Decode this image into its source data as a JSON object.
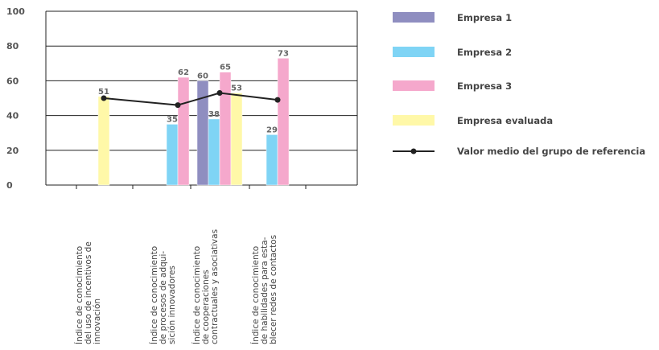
{
  "chart_data": {
    "type": "bar",
    "ylim": [
      0,
      100
    ],
    "y_ticks": [
      "0",
      "20",
      "40",
      "60",
      "80",
      "100"
    ],
    "grid": true,
    "legend_position": "right",
    "categories": [
      "Índice de conocimiento del uso de incentivos de innovación",
      "Índice de conocimiento de procesos de adquisición innovadores",
      "Índice de conocimiento de cooperaciones contractuales y asociativas",
      "Índice de conocimiento de habilidades para establecer redes de contactos"
    ],
    "category_label_lines": [
      [
        "Índice de conocimiento",
        "del uso de incentivos de",
        "innovación"
      ],
      [
        "Índice de conocimiento",
        "de procesos de adqui-",
        "sición innovadores"
      ],
      [
        "Índice de conocimiento",
        "de cooperaciones",
        "contractuales y asociativas"
      ],
      [
        "Índice de conocimiento",
        "de habilidades para esta-",
        "blecer redes de contactos"
      ]
    ],
    "series": [
      {
        "name": "Empresa 1",
        "color": "#8f8ec0",
        "values": [
          null,
          null,
          60,
          null
        ]
      },
      {
        "name": "Empresa 2",
        "color": "#7fd4f5",
        "values": [
          null,
          35,
          38,
          29
        ]
      },
      {
        "name": "Empresa 3",
        "color": "#f5a8cc",
        "values": [
          null,
          62,
          65,
          73
        ]
      },
      {
        "name": "Empresa evaluada",
        "color": "#fff8a8",
        "values": [
          51,
          null,
          53,
          null
        ]
      }
    ],
    "reference_line": {
      "name": "Valor medio del grupo de referencia",
      "color": "#222222",
      "values": [
        50,
        46,
        53,
        49
      ]
    }
  }
}
